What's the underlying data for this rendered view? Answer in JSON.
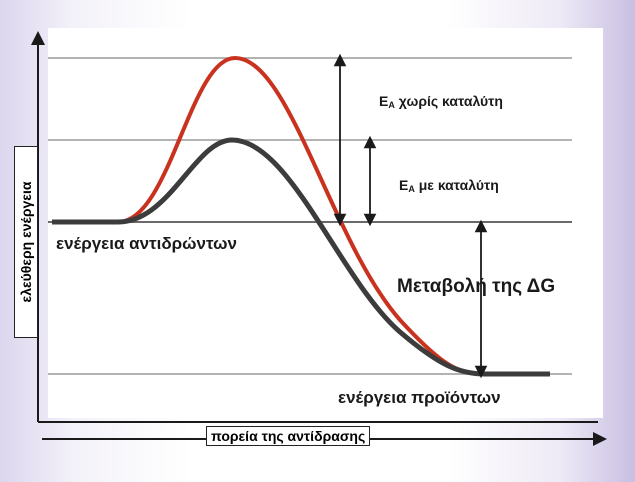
{
  "axes": {
    "y_label": "ελεύθερη ενέργεια",
    "x_label": "πορεία της αντίδρασης"
  },
  "labels": {
    "reactant_energy": "ενέργεια αντιδρώντων",
    "product_energy": "ενέργεια προϊόντων",
    "ea_without_catalyst_main": "E",
    "ea_without_catalyst_sub": "A",
    "ea_without_catalyst_text": " χωρίς καταλύτη",
    "ea_with_catalyst_main": "E",
    "ea_with_catalyst_sub": "A",
    "ea_with_catalyst_text": " με καταλύτη",
    "delta_g": "Μεταβολή της ΔG"
  },
  "colors": {
    "uncatalyzed_curve": "#c8321e",
    "catalyzed_curve": "#3c3c3c",
    "guide_lines": "#9a9a9a",
    "axes": "#1a1a1a"
  }
}
